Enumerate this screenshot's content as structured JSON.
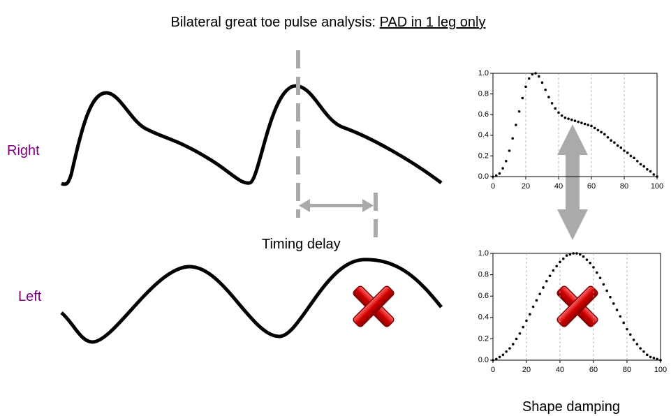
{
  "title": {
    "prefix": "Bilateral great toe pulse analysis: ",
    "emphasis": "PAD in 1 leg only"
  },
  "labels": {
    "right": "Right",
    "left": "Left",
    "timing": "Timing delay",
    "shape": "Shape damping"
  },
  "chart_data": [
    {
      "type": "scatter",
      "color": "#000000",
      "grid": true,
      "x": [
        0,
        2,
        4,
        6,
        8,
        10,
        12,
        14,
        16,
        18,
        20,
        22,
        24,
        26,
        28,
        30,
        32,
        34,
        36,
        38,
        40,
        42,
        44,
        46,
        48,
        50,
        52,
        54,
        56,
        58,
        60,
        62,
        64,
        66,
        68,
        70,
        72,
        74,
        76,
        78,
        80,
        82,
        84,
        86,
        88,
        90,
        92,
        94,
        96,
        98,
        100
      ],
      "values": [
        0,
        0.01,
        0.03,
        0.08,
        0.15,
        0.25,
        0.37,
        0.5,
        0.63,
        0.76,
        0.87,
        0.95,
        0.99,
        1.0,
        0.97,
        0.91,
        0.84,
        0.77,
        0.71,
        0.66,
        0.62,
        0.59,
        0.57,
        0.56,
        0.55,
        0.54,
        0.53,
        0.52,
        0.51,
        0.5,
        0.49,
        0.47,
        0.45,
        0.43,
        0.41,
        0.38,
        0.35,
        0.33,
        0.3,
        0.28,
        0.25,
        0.23,
        0.2,
        0.18,
        0.15,
        0.12,
        0.1,
        0.07,
        0.05,
        0.02,
        0
      ],
      "xlim": [
        0,
        100
      ],
      "xticks": [
        0,
        20,
        40,
        60,
        80,
        100
      ],
      "ylim": [
        0,
        1
      ],
      "yticks": [
        {
          "value": 0,
          "label": "0.0"
        },
        {
          "value": 0.2,
          "label": "0.2"
        },
        {
          "value": 0.4,
          "label": "0.4"
        },
        {
          "value": 0.6,
          "label": "0.6"
        },
        {
          "value": 0.8,
          "label": "0.8"
        },
        {
          "value": 1,
          "label": "1.0"
        }
      ]
    },
    {
      "type": "scatter",
      "color": "#000000",
      "grid": true,
      "x": [
        0,
        2,
        4,
        6,
        8,
        10,
        12,
        14,
        16,
        18,
        20,
        22,
        24,
        26,
        28,
        30,
        32,
        34,
        36,
        38,
        40,
        42,
        44,
        46,
        48,
        50,
        52,
        54,
        56,
        58,
        60,
        62,
        64,
        66,
        68,
        70,
        72,
        74,
        76,
        78,
        80,
        82,
        84,
        86,
        88,
        90,
        92,
        94,
        96,
        98,
        100
      ],
      "values": [
        0,
        0.01,
        0.03,
        0.05,
        0.08,
        0.11,
        0.15,
        0.2,
        0.25,
        0.31,
        0.37,
        0.43,
        0.5,
        0.56,
        0.62,
        0.68,
        0.74,
        0.79,
        0.84,
        0.88,
        0.92,
        0.95,
        0.98,
        0.99,
        1.0,
        1.0,
        0.99,
        0.97,
        0.94,
        0.91,
        0.87,
        0.82,
        0.77,
        0.71,
        0.65,
        0.59,
        0.53,
        0.47,
        0.41,
        0.35,
        0.29,
        0.24,
        0.19,
        0.15,
        0.11,
        0.08,
        0.05,
        0.03,
        0.02,
        0.01,
        0
      ],
      "xlim": [
        0,
        100
      ],
      "xticks": [
        0,
        20,
        40,
        60,
        80,
        100
      ],
      "ylim": [
        0,
        1
      ],
      "yticks": [
        {
          "value": 0,
          "label": "0.0"
        },
        {
          "value": 0.2,
          "label": "0.2"
        },
        {
          "value": 0.4,
          "label": "0.4"
        },
        {
          "value": 0.6,
          "label": "0.6"
        },
        {
          "value": 0.8,
          "label": "0.8"
        },
        {
          "value": 1,
          "label": "1.0"
        }
      ]
    }
  ]
}
